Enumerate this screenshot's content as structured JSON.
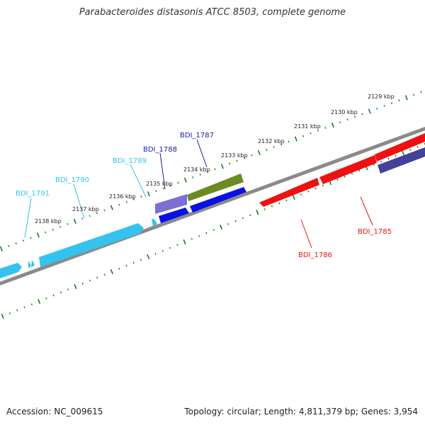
{
  "title": "Parabacteroides distasonis ATCC 8503, complete genome",
  "footer": {
    "accession": "Accession: NC_009615",
    "summary": "Topology: circular; Length: 4,811,379 bp; Genes: 3,954"
  },
  "colors": {
    "tick": "#1e7a1e",
    "backbone": "#888888",
    "cyan": "#33c3ee",
    "violet": "#7b6fd6",
    "blue": "#0a10e6",
    "olive": "#6b8a22",
    "red": "#ee1111",
    "navy": "#42429a"
  },
  "scale_labels": [
    "2129 kbp",
    "2130 kbp",
    "2131 kbp",
    "2132 kbp",
    "2133 kbp",
    "2134 kbp",
    "2135 kbp",
    "2136 kbp",
    "2137 kbp",
    "2138 kbp"
  ],
  "genes": [
    {
      "name": "BDI_1785",
      "color": "#ee1111"
    },
    {
      "name": "BDI_1786",
      "color": "#ee1111"
    },
    {
      "name": "BDI_1787",
      "color": "#1a1aa8"
    },
    {
      "name": "BDI_1788",
      "color": "#1a1aa8"
    },
    {
      "name": "BDI_1789",
      "color": "#33c3ee"
    },
    {
      "name": "BDI_1790",
      "color": "#33c3ee"
    },
    {
      "name": "BDI_1791",
      "color": "#33c3ee"
    }
  ]
}
